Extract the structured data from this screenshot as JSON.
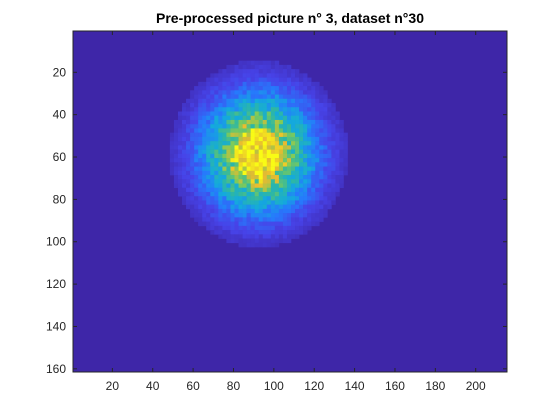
{
  "chart_data": {
    "type": "heatmap",
    "title": "Pre-processed picture n° 3, dataset n°30",
    "xlabel": "",
    "ylabel": "",
    "colormap": "parula",
    "colors": {
      "background": "#3e26a8",
      "edge": "#4743e8",
      "mid": "#2eb7a4",
      "peak": "#f9fb15"
    },
    "xlim": [
      0.5,
      215.5
    ],
    "ylim": [
      0.5,
      161.5
    ],
    "y_reversed": true,
    "xticks": [
      20,
      40,
      60,
      80,
      100,
      120,
      140,
      160,
      180,
      200
    ],
    "yticks": [
      20,
      40,
      60,
      80,
      100,
      120,
      140,
      160
    ],
    "blob": {
      "center_x": 92,
      "center_y": 58,
      "radius": 38,
      "peak_value": 1.0,
      "background_value": 0.0
    }
  }
}
